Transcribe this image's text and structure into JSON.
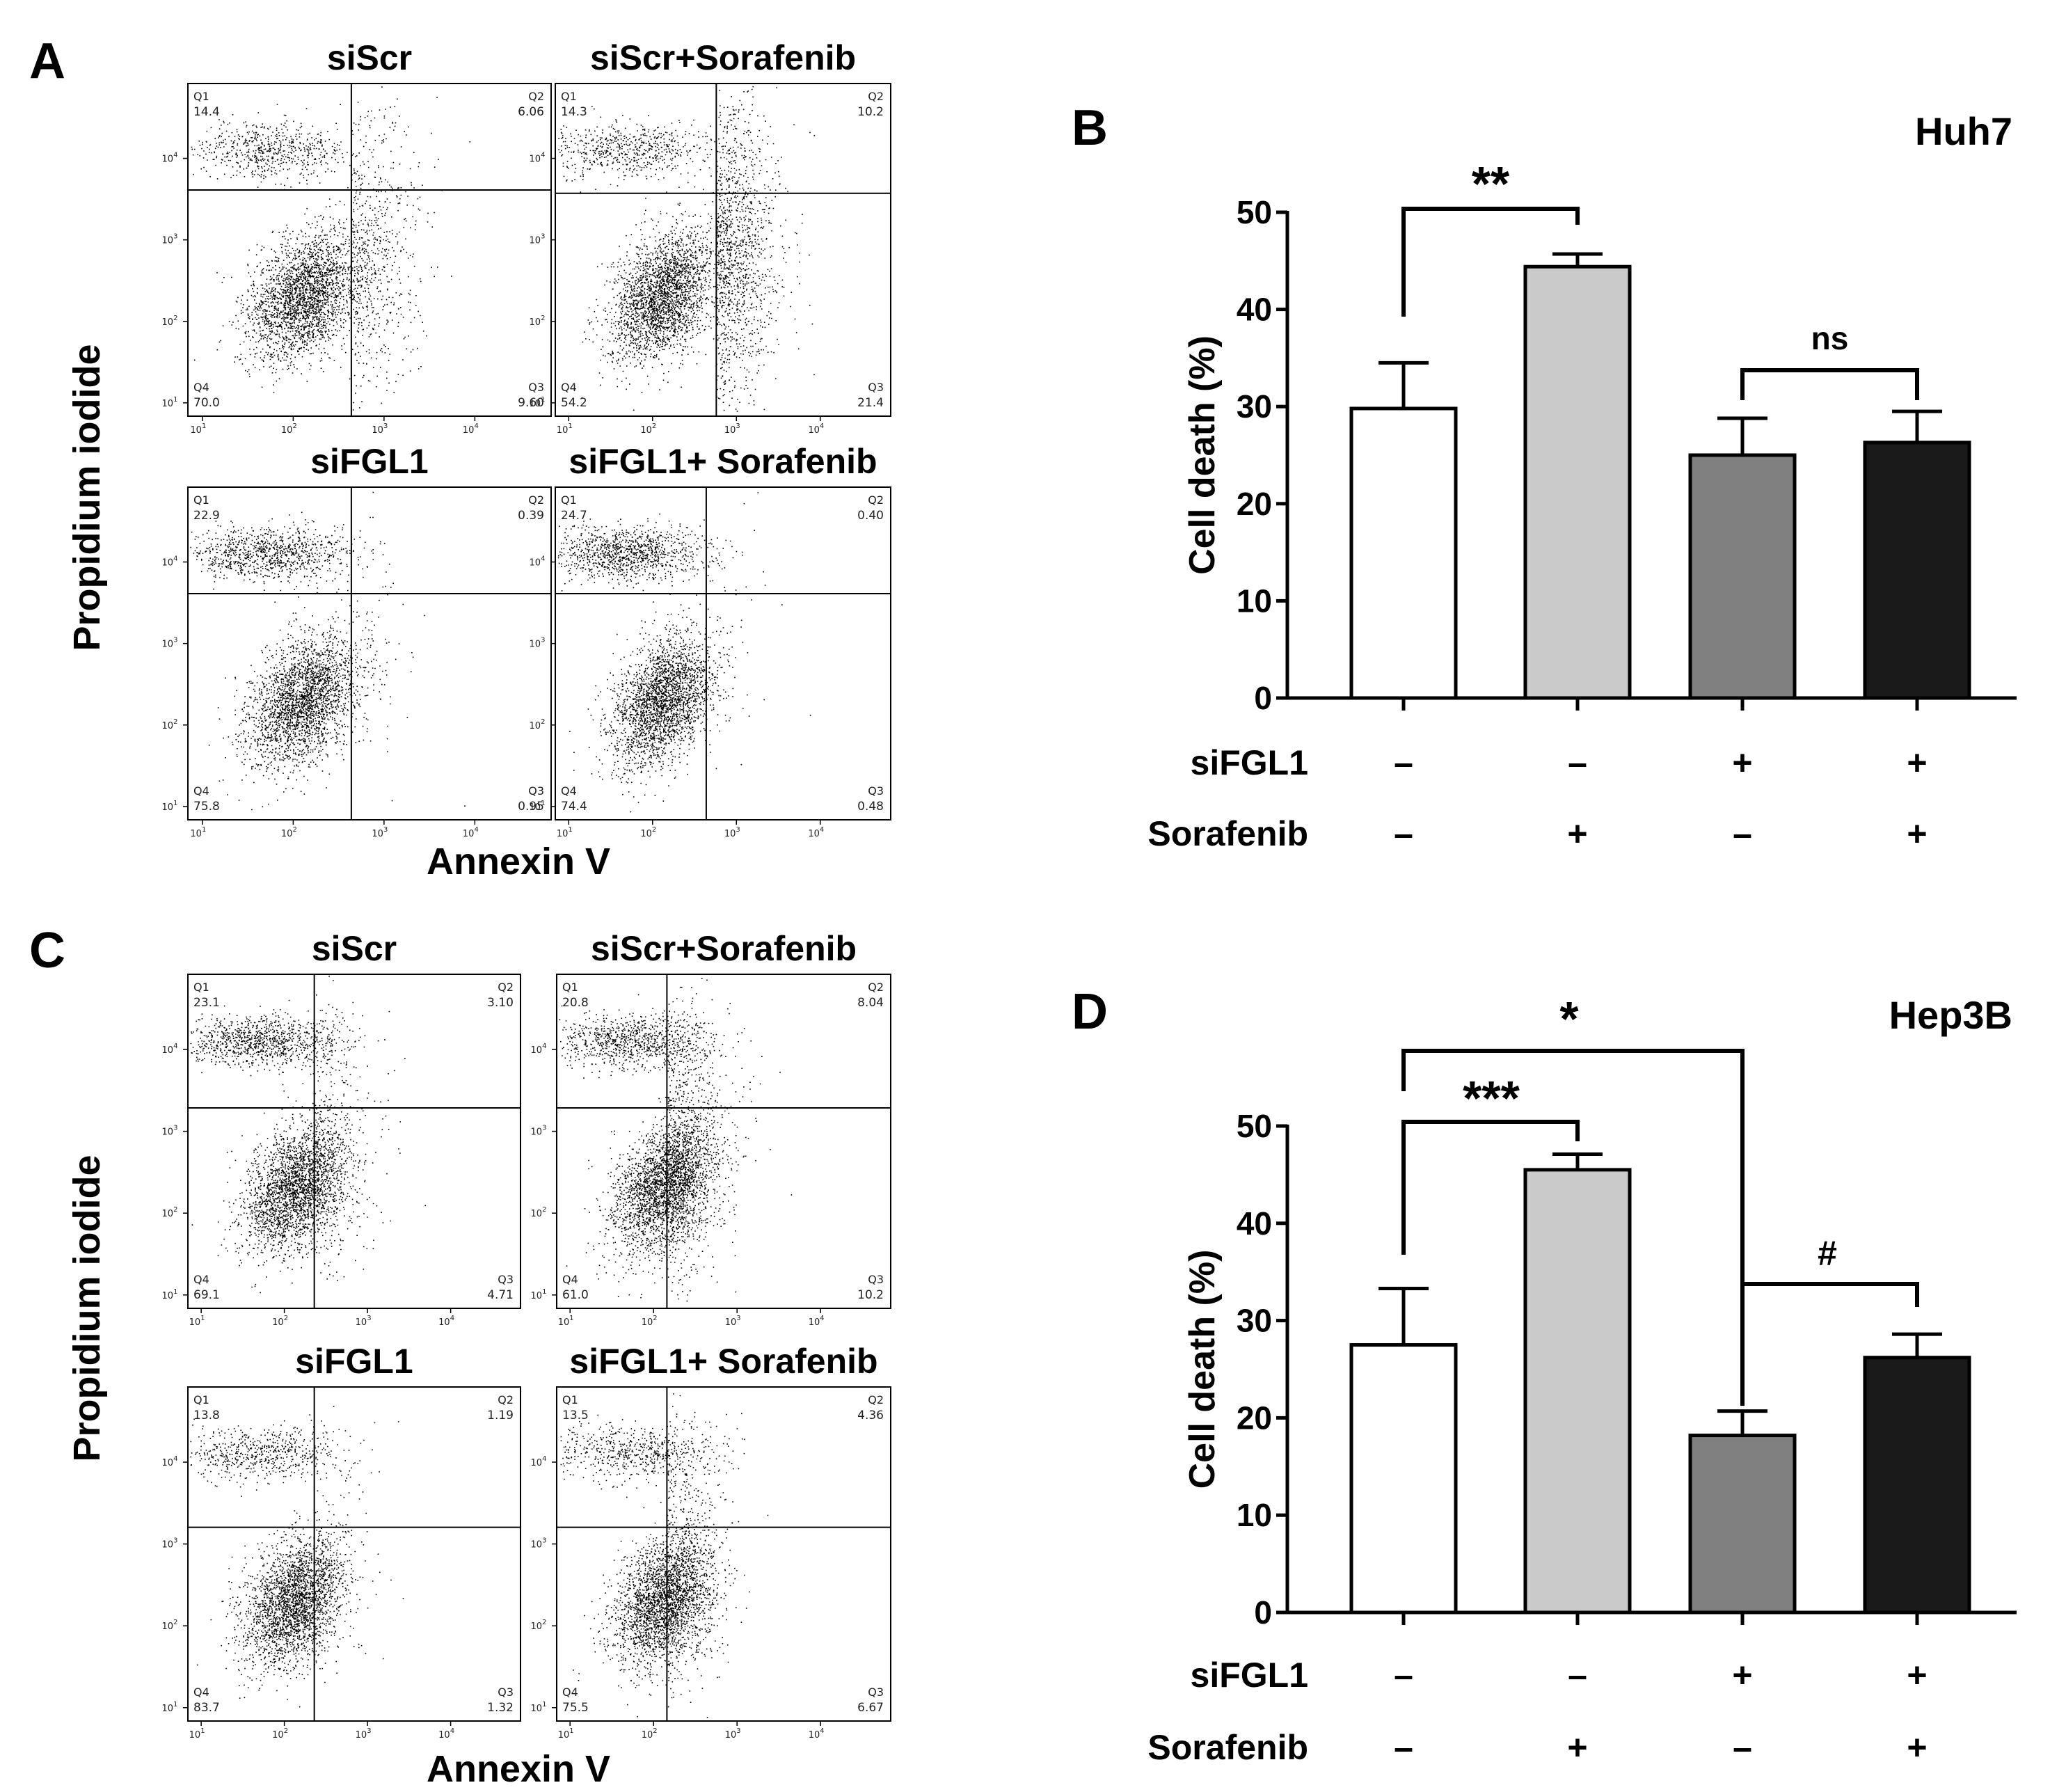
{
  "figure": {
    "flow_y_label": "Propidium iodide",
    "flow_x_label": "Annexin V"
  },
  "panels": {
    "A": {
      "letter": "A",
      "plots": [
        {
          "title": "siScr",
          "q1": "14.4",
          "q2": "6.06",
          "q3": "9.60",
          "q4": "70.0"
        },
        {
          "title": "siScr+Sorafenib",
          "q1": "14.3",
          "q2": "10.2",
          "q3": "21.4",
          "q4": "54.2"
        },
        {
          "title": "siFGL1",
          "q1": "22.9",
          "q2": "0.39",
          "q3": "0.95",
          "q4": "75.8"
        },
        {
          "title": "siFGL1+ Sorafenib",
          "q1": "24.7",
          "q2": "0.40",
          "q3": "0.48",
          "q4": "74.4"
        }
      ]
    },
    "C": {
      "letter": "C",
      "plots": [
        {
          "title": "siScr",
          "q1": "23.1",
          "q2": "3.10",
          "q3": "4.71",
          "q4": "69.1"
        },
        {
          "title": "siScr+Sorafenib",
          "q1": "20.8",
          "q2": "8.04",
          "q3": "10.2",
          "q4": "61.0"
        },
        {
          "title": "siFGL1",
          "q1": "13.8",
          "q2": "1.19",
          "q3": "1.32",
          "q4": "83.7"
        },
        {
          "title": "siFGL1+ Sorafenib",
          "q1": "13.5",
          "q2": "4.36",
          "q3": "6.67",
          "q4": "75.5"
        }
      ]
    },
    "B": {
      "letter": "B"
    },
    "D": {
      "letter": "D"
    }
  },
  "flow_axis": {
    "x_ticks": [
      "10",
      "10",
      "10",
      "10"
    ],
    "x_exps": [
      "1",
      "2",
      "3",
      "4"
    ],
    "y_ticks": [
      "10",
      "10",
      "10",
      "10"
    ],
    "y_exps": [
      "1",
      "2",
      "3",
      "4"
    ],
    "quadrant_names": [
      "Q1",
      "Q2",
      "Q3",
      "Q4"
    ]
  },
  "chart_data": [
    {
      "type": "bar",
      "title": "Huh7",
      "ylabel": "Cell death (%)",
      "ylim": [
        0,
        50
      ],
      "yticks": [
        0,
        10,
        20,
        30,
        40,
        50
      ],
      "categories": [
        "siScr",
        "siScr+Sorafenib",
        "siFGL1",
        "siFGL1+Sorafenib"
      ],
      "values": [
        29.8,
        44.4,
        25.0,
        26.3
      ],
      "errors": [
        4.7,
        1.3,
        3.8,
        3.2
      ],
      "bar_colors": [
        "#ffffff",
        "#cacaca",
        "#808080",
        "#1a1a1a"
      ],
      "condition_rows": [
        {
          "label": "siFGL1",
          "signs": [
            "–",
            "–",
            "+",
            "+"
          ]
        },
        {
          "label": "Sorafenib",
          "signs": [
            "–",
            "+",
            "–",
            "+"
          ]
        }
      ],
      "comparisons": [
        {
          "from": 0,
          "to": 1,
          "label": "**"
        },
        {
          "from": 2,
          "to": 3,
          "label": "ns"
        }
      ]
    },
    {
      "type": "bar",
      "title": "Hep3B",
      "ylabel": "Cell death (%)",
      "ylim": [
        0,
        50
      ],
      "yticks": [
        0,
        10,
        20,
        30,
        40,
        50
      ],
      "categories": [
        "siScr",
        "siScr+Sorafenib",
        "siFGL1",
        "siFGL1+Sorafenib"
      ],
      "values": [
        27.5,
        45.5,
        18.2,
        26.2
      ],
      "errors": [
        5.8,
        1.6,
        2.5,
        2.4
      ],
      "bar_colors": [
        "#ffffff",
        "#cacaca",
        "#808080",
        "#1a1a1a"
      ],
      "condition_rows": [
        {
          "label": "siFGL1",
          "signs": [
            "–",
            "–",
            "+",
            "+"
          ]
        },
        {
          "label": "Sorafenib",
          "signs": [
            "–",
            "+",
            "–",
            "+"
          ]
        }
      ],
      "comparisons": [
        {
          "from": 0,
          "to": 2,
          "label": "*"
        },
        {
          "from": 0,
          "to": 1,
          "label": "***"
        },
        {
          "from": 2,
          "to": 3,
          "label": "#"
        }
      ]
    }
  ]
}
